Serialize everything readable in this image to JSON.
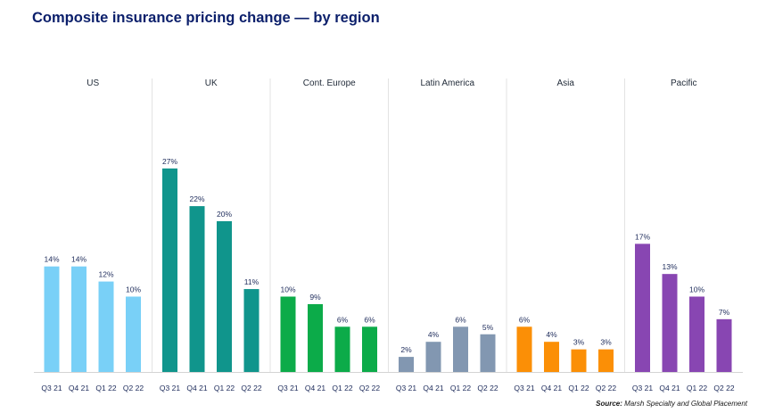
{
  "title": "Composite insurance pricing change — by region",
  "source_label": "Source:",
  "source_text": " Marsh Specialty and Global Placement",
  "chart_data": {
    "type": "bar",
    "title": "Composite insurance pricing change — by region",
    "categories": [
      "Q3 21",
      "Q4 21",
      "Q1 22",
      "Q2 22"
    ],
    "value_suffix": "%",
    "ylim": [
      0,
      30
    ],
    "grid": false,
    "series": [
      {
        "name": "US",
        "color": "#79d0f7",
        "values": [
          14,
          14,
          12,
          10
        ]
      },
      {
        "name": "UK",
        "color": "#10958c",
        "values": [
          27,
          22,
          20,
          11
        ]
      },
      {
        "name": "Cont. Europe",
        "color": "#0cab49",
        "values": [
          10,
          9,
          6,
          6
        ]
      },
      {
        "name": "Latin America",
        "color": "#8297b1",
        "values": [
          2,
          4,
          6,
          5
        ]
      },
      {
        "name": "Asia",
        "color": "#fb8f06",
        "values": [
          6,
          4,
          3,
          3
        ]
      },
      {
        "name": "Pacific",
        "color": "#8846b2",
        "values": [
          17,
          13,
          10,
          7
        ]
      }
    ]
  }
}
